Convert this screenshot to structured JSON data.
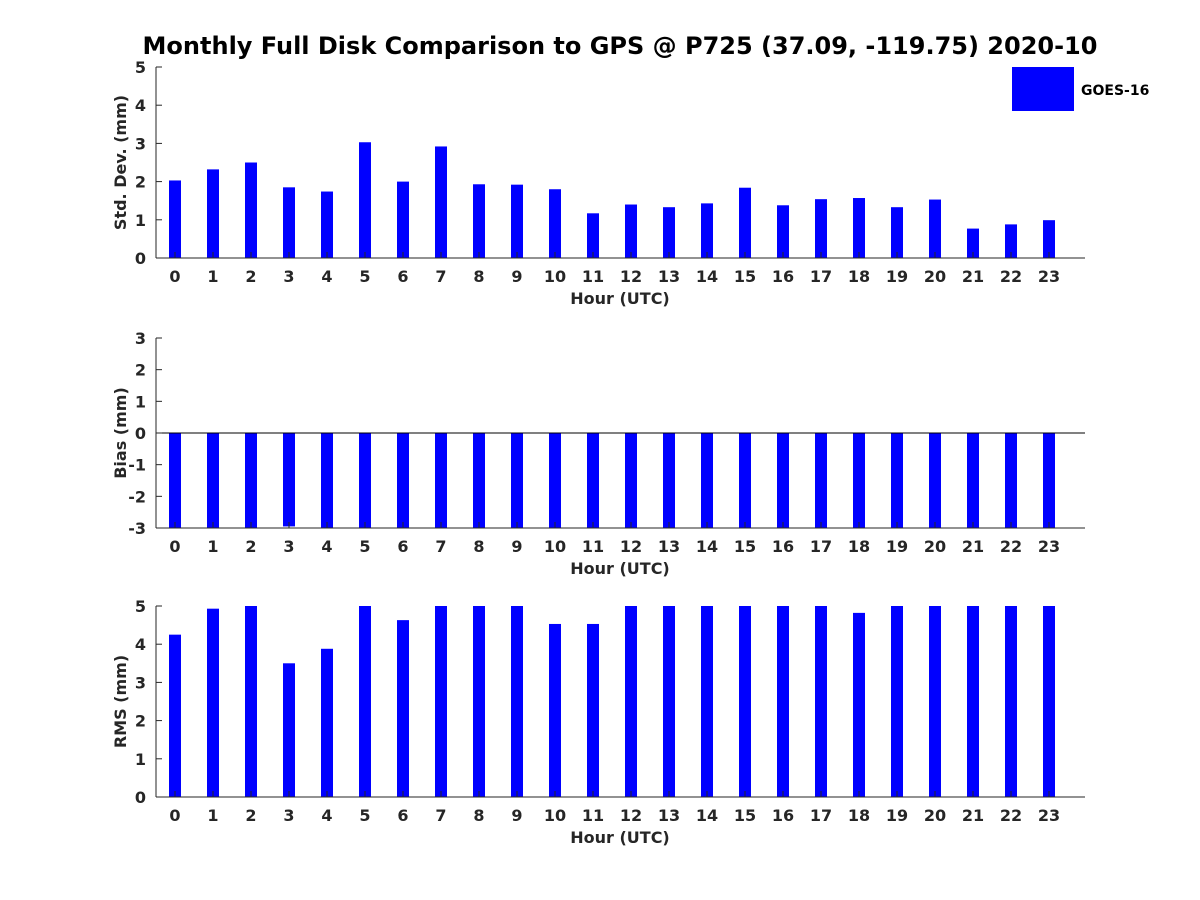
{
  "title": "Monthly Full Disk Comparison to GPS @ P725 (37.09, -119.75) 2020-10",
  "bar_color": "#0000ff",
  "legend": {
    "label": "GOES-16",
    "placement": "top-right"
  },
  "chart_data": [
    {
      "type": "bar",
      "categories": [
        "0",
        "1",
        "2",
        "3",
        "4",
        "5",
        "6",
        "7",
        "8",
        "9",
        "10",
        "11",
        "12",
        "13",
        "14",
        "15",
        "16",
        "17",
        "18",
        "19",
        "20",
        "21",
        "22",
        "23"
      ],
      "series": [
        {
          "name": "GOES-16",
          "values": [
            2.03,
            2.32,
            2.5,
            1.85,
            1.74,
            3.03,
            2.0,
            2.92,
            1.93,
            1.92,
            1.8,
            1.17,
            1.4,
            1.33,
            1.43,
            1.84,
            1.38,
            1.54,
            1.57,
            1.33,
            1.53,
            0.77,
            0.88,
            0.99
          ]
        }
      ],
      "xlabel": "Hour (UTC)",
      "ylabel": "Std. Dev. (mm)",
      "ylim": [
        0,
        5
      ],
      "yticks": [
        0,
        1,
        2,
        3,
        4,
        5
      ],
      "grid": false
    },
    {
      "type": "bar",
      "categories": [
        "0",
        "1",
        "2",
        "3",
        "4",
        "5",
        "6",
        "7",
        "8",
        "9",
        "10",
        "11",
        "12",
        "13",
        "14",
        "15",
        "16",
        "17",
        "18",
        "19",
        "20",
        "21",
        "22",
        "23"
      ],
      "series": [
        {
          "name": "GOES-16",
          "values": [
            -3,
            -3,
            -3,
            -2.95,
            -3,
            -3,
            -3,
            -3,
            -3,
            -3,
            -3,
            -3,
            -3,
            -3,
            -3,
            -3,
            -3,
            -3,
            -3,
            -3,
            -3,
            -3,
            -3,
            -3
          ]
        }
      ],
      "xlabel": "Hour (UTC)",
      "ylabel": "Bias (mm)",
      "ylim": [
        -3,
        3
      ],
      "yticks": [
        -3,
        -2,
        -1,
        0,
        1,
        2,
        3
      ],
      "zero_line": true,
      "grid": false
    },
    {
      "type": "bar",
      "categories": [
        "0",
        "1",
        "2",
        "3",
        "4",
        "5",
        "6",
        "7",
        "8",
        "9",
        "10",
        "11",
        "12",
        "13",
        "14",
        "15",
        "16",
        "17",
        "18",
        "19",
        "20",
        "21",
        "22",
        "23"
      ],
      "series": [
        {
          "name": "GOES-16",
          "values": [
            4.25,
            4.93,
            5,
            3.5,
            3.88,
            5,
            4.63,
            5,
            5,
            5,
            4.53,
            4.53,
            5,
            5,
            5,
            5,
            5,
            5,
            4.82,
            5,
            5,
            5,
            5,
            5
          ]
        }
      ],
      "xlabel": "Hour (UTC)",
      "ylabel": "RMS (mm)",
      "ylim": [
        0,
        5
      ],
      "yticks": [
        0,
        1,
        2,
        3,
        4,
        5
      ],
      "grid": false
    }
  ]
}
